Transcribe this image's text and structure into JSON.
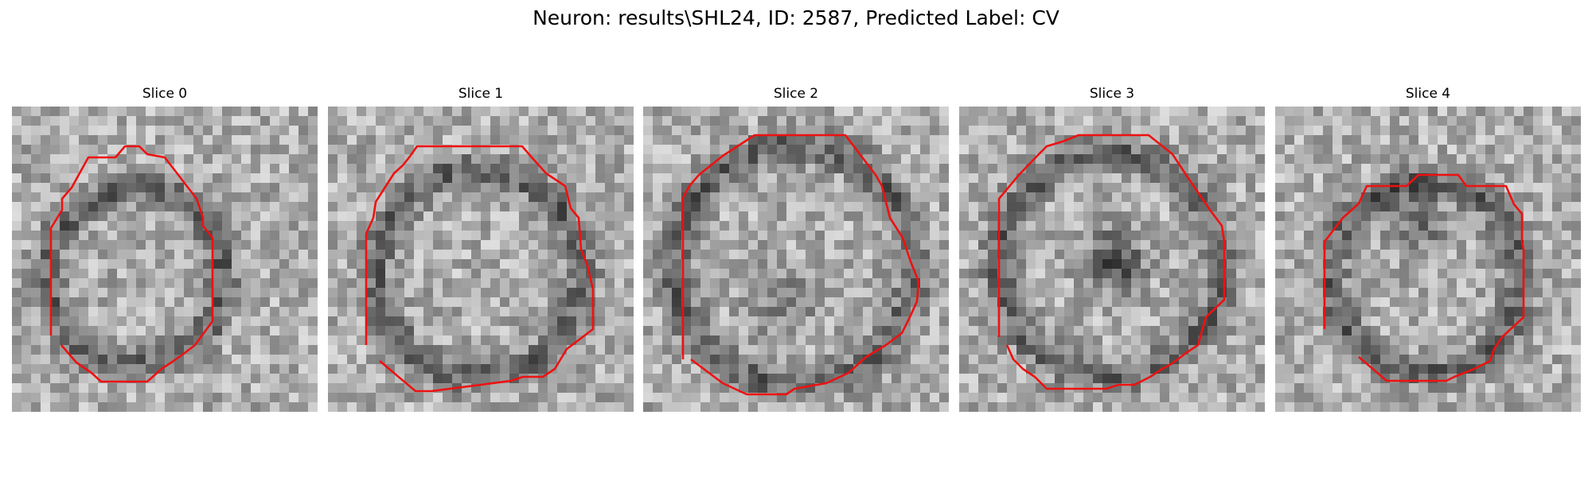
{
  "figure": {
    "suptitle": "Neuron: results\\SHL24, ID: 2587, Predicted Label: CV",
    "contour_color": "#ee1111",
    "panels": [
      {
        "title": "Slice 0"
      },
      {
        "title": "Slice 1"
      },
      {
        "title": "Slice 2"
      },
      {
        "title": "Slice 3"
      },
      {
        "title": "Slice 4"
      }
    ]
  }
}
